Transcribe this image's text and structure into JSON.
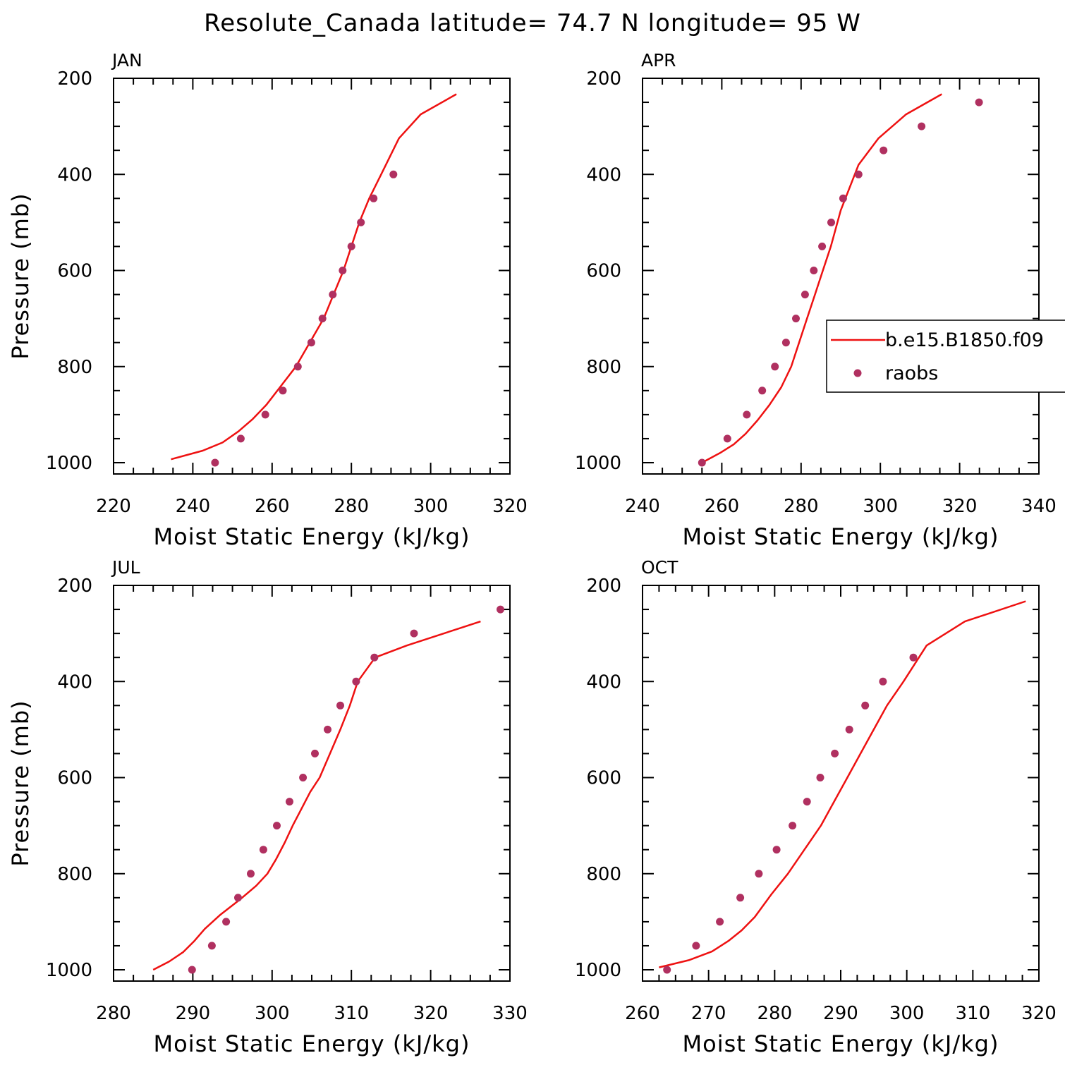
{
  "title": "Resolute_Canada  latitude= 74.7 N longitude= 95 W",
  "colors": {
    "model": "#ee1111",
    "obs": "#b03060",
    "axis": "#000000"
  },
  "legend": {
    "model_label": "b.e15.B1850.f09",
    "obs_label": "raobs"
  },
  "chart_data": [
    {
      "type": "scatter",
      "panel_label": "JAN",
      "xlabel": "Moist Static Energy (kJ/kg)",
      "ylabel": "Pressure (mb)",
      "xlim": [
        220,
        320
      ],
      "ylim": [
        1000,
        200
      ],
      "x_ticks": [
        "220",
        "240",
        "260",
        "280",
        "300",
        "320"
      ],
      "y_ticks": [
        "200",
        "400",
        "600",
        "800",
        "1000"
      ],
      "series": [
        {
          "name": "b.e15.B1850.f09",
          "kind": "line",
          "x": [
            234.5,
            242.5,
            247.5,
            251.5,
            255,
            258.5,
            262,
            266,
            269.5,
            273,
            275.5,
            278,
            280,
            282,
            284.5,
            287.5,
            292,
            297.5,
            306.5
          ],
          "y": [
            993,
            975,
            958,
            935,
            910,
            880,
            843,
            800,
            750,
            700,
            650,
            600,
            550,
            500,
            450,
            400,
            325,
            275,
            233
          ]
        },
        {
          "name": "raobs",
          "kind": "points",
          "x": [
            245.6,
            252.1,
            258.3,
            262.7,
            266.5,
            269.9,
            272.7,
            275.3,
            277.8,
            280,
            282.4,
            285.6,
            290.6
          ],
          "y": [
            1000,
            950,
            900,
            850,
            800,
            750,
            700,
            650,
            600,
            550,
            500,
            450,
            400
          ]
        }
      ]
    },
    {
      "type": "scatter",
      "panel_label": "APR",
      "xlabel": "Moist Static Energy (kJ/kg)",
      "ylabel": "",
      "xlim": [
        240,
        340
      ],
      "ylim": [
        1000,
        200
      ],
      "x_ticks": [
        "240",
        "260",
        "280",
        "300",
        "320",
        "340"
      ],
      "y_ticks": [
        "200",
        "400",
        "600",
        "800",
        "1000"
      ],
      "series": [
        {
          "name": "b.e15.B1850.f09",
          "kind": "line",
          "x": [
            255,
            259.5,
            263,
            266,
            269,
            272,
            275,
            277.5,
            279.5,
            281.5,
            283.5,
            285.5,
            287.5,
            290,
            294.5,
            299.5,
            306.5,
            315.5
          ],
          "y": [
            1000,
            980,
            962,
            940,
            912,
            880,
            843,
            800,
            750,
            700,
            650,
            600,
            550,
            475,
            380,
            325,
            275,
            233
          ]
        },
        {
          "name": "raobs",
          "kind": "points",
          "x": [
            255,
            261.4,
            266.3,
            270.2,
            273.4,
            276.2,
            278.7,
            281,
            283.2,
            285.3,
            287.6,
            290.6,
            294.5,
            300.8,
            310.4,
            324.9
          ],
          "y": [
            1000,
            950,
            900,
            850,
            800,
            750,
            700,
            650,
            600,
            550,
            500,
            450,
            400,
            350,
            300,
            250
          ]
        }
      ]
    },
    {
      "type": "scatter",
      "panel_label": "JUL",
      "xlabel": "Moist Static Energy (kJ/kg)",
      "ylabel": "Pressure (mb)",
      "xlim": [
        280,
        330
      ],
      "ylim": [
        1000,
        200
      ],
      "x_ticks": [
        "280",
        "290",
        "300",
        "310",
        "320",
        "330"
      ],
      "y_ticks": [
        "200",
        "400",
        "600",
        "800",
        "1000"
      ],
      "series": [
        {
          "name": "b.e15.B1850.f09",
          "kind": "line",
          "x": [
            285,
            287,
            288.8,
            290.2,
            291.5,
            293.5,
            296,
            298,
            299.4,
            300.5,
            301.6,
            302.6,
            303.7,
            304.8,
            306,
            307.3,
            308.6,
            309.8,
            310.8,
            313,
            317,
            326.3
          ],
          "y": [
            1000,
            983,
            963,
            940,
            915,
            885,
            853,
            825,
            800,
            770,
            735,
            700,
            665,
            630,
            600,
            550,
            500,
            450,
            400,
            350,
            325,
            275
          ]
        },
        {
          "name": "raobs",
          "kind": "points",
          "x": [
            289.9,
            292.4,
            294.2,
            295.7,
            297.3,
            298.9,
            300.6,
            302.2,
            303.9,
            305.4,
            307,
            308.6,
            310.6,
            312.9,
            317.9,
            328.8
          ],
          "y": [
            1000,
            950,
            900,
            850,
            800,
            750,
            700,
            650,
            600,
            550,
            500,
            450,
            400,
            350,
            300,
            250
          ]
        }
      ]
    },
    {
      "type": "scatter",
      "panel_label": "OCT",
      "xlabel": "Moist Static Energy (kJ/kg)",
      "ylabel": "",
      "xlim": [
        260,
        320
      ],
      "ylim": [
        1000,
        200
      ],
      "x_ticks": [
        "260",
        "270",
        "280",
        "290",
        "300",
        "310",
        "320"
      ],
      "y_ticks": [
        "200",
        "400",
        "600",
        "800",
        "1000"
      ],
      "series": [
        {
          "name": "b.e15.B1850.f09",
          "kind": "line",
          "x": [
            262.5,
            267,
            270.5,
            273,
            275,
            277,
            279.5,
            282,
            284.5,
            287,
            289,
            291,
            293,
            295,
            297,
            299.5,
            303,
            308.8,
            318
          ],
          "y": [
            995,
            980,
            962,
            940,
            918,
            890,
            843,
            800,
            750,
            700,
            650,
            600,
            550,
            500,
            450,
            400,
            325,
            275,
            233
          ]
        },
        {
          "name": "raobs",
          "kind": "points",
          "x": [
            263.7,
            268.1,
            271.7,
            274.8,
            277.6,
            280.3,
            282.7,
            284.9,
            286.9,
            289.1,
            291.3,
            293.7,
            296.4,
            301
          ],
          "y": [
            1000,
            950,
            900,
            850,
            800,
            750,
            700,
            650,
            600,
            550,
            500,
            450,
            400,
            350
          ]
        }
      ]
    }
  ]
}
